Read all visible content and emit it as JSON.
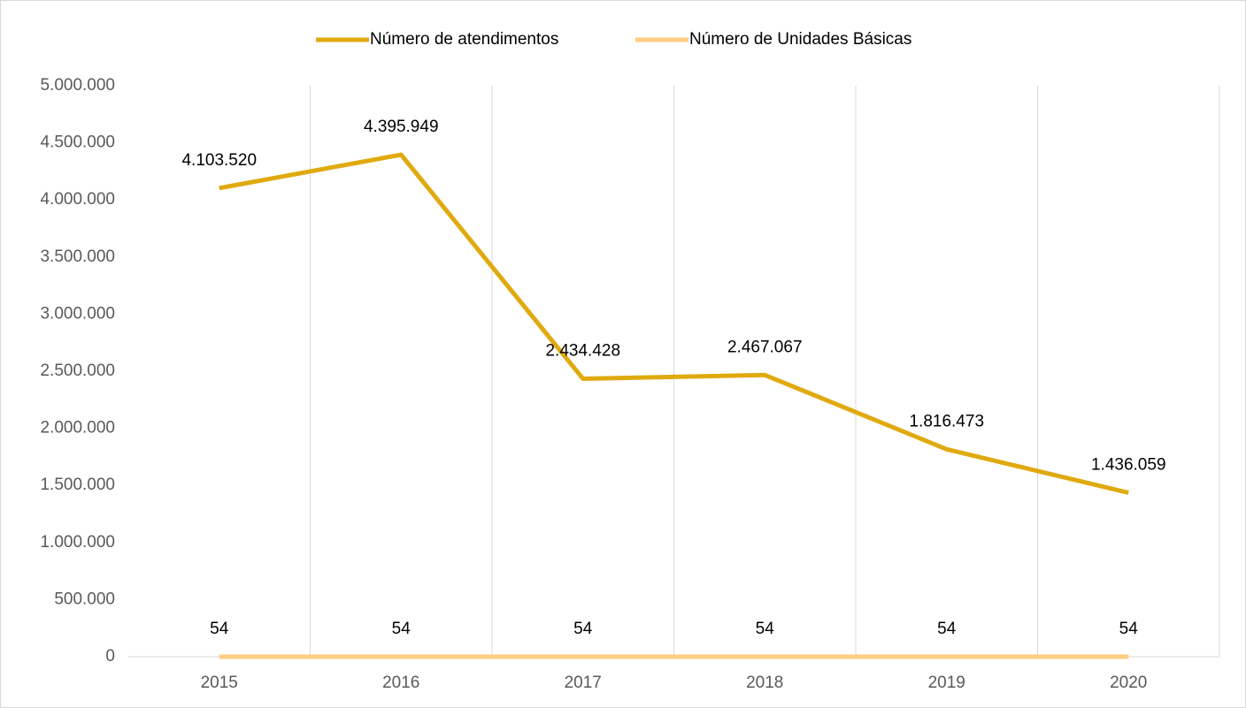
{
  "chart_data": {
    "type": "line",
    "categories": [
      "2015",
      "2016",
      "2017",
      "2018",
      "2019",
      "2020"
    ],
    "series": [
      {
        "name": "Número de atendimentos",
        "color": "#e0aa0f",
        "values": [
          4103520,
          4395949,
          2434428,
          2467067,
          1816473,
          1436059
        ],
        "value_labels": [
          "4.103.520",
          "4.395.949",
          "2.434.428",
          "2.467.067",
          "1.816.473",
          "1.436.059"
        ]
      },
      {
        "name": "Número de Unidades Básicas",
        "color": "#ffcc80",
        "values": [
          54,
          54,
          54,
          54,
          54,
          54
        ]
      }
    ],
    "ylim": [
      0,
      5000000
    ],
    "yticks": [
      0,
      {
        "value": 500000,
        "label": "500.000"
      },
      {
        "value": 1000000,
        "label": "1.000.000"
      },
      {
        "value": 1500000,
        "label": "1.500.000"
      },
      {
        "value": 2000000,
        "label": "2.000.000"
      },
      {
        "value": 2500000,
        "label": "2.500.000"
      },
      {
        "value": 3000000,
        "label": "3.000.000"
      },
      {
        "value": 3500000,
        "label": "3.500.000"
      },
      {
        "value": 4000000,
        "label": "4.000.000"
      },
      {
        "value": 4500000,
        "label": "4.500.000"
      },
      {
        "value": 5000000,
        "label": "5.000.000"
      }
    ],
    "grid": false,
    "legend": "top"
  }
}
